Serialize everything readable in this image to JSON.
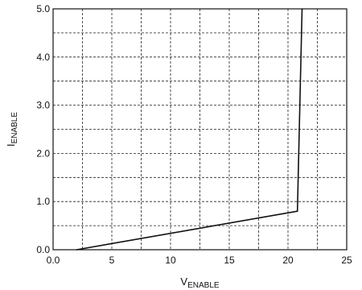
{
  "chart_data": {
    "type": "line",
    "xlabel_main": "V",
    "xlabel_sub": "ENABLE",
    "ylabel_main": "I",
    "ylabel_sub": "ENABLE",
    "xlim": [
      0,
      25
    ],
    "ylim": [
      0,
      5
    ],
    "grid": true,
    "x_ticks": [
      {
        "value": 0,
        "label": "0.0"
      },
      {
        "value": 5,
        "label": "5"
      },
      {
        "value": 10,
        "label": "10"
      },
      {
        "value": 15,
        "label": "15"
      },
      {
        "value": 20,
        "label": "20"
      },
      {
        "value": 25,
        "label": "25"
      }
    ],
    "y_ticks": [
      {
        "value": 0,
        "label": "0.0"
      },
      {
        "value": 1,
        "label": "1.0"
      },
      {
        "value": 2,
        "label": "2.0"
      },
      {
        "value": 3,
        "label": "3.0"
      },
      {
        "value": 4,
        "label": "4.0"
      },
      {
        "value": 5,
        "label": "5.0"
      }
    ],
    "x_minor_step": 2.5,
    "y_minor_step": 0.5,
    "series": [
      {
        "points": [
          {
            "x": 2.0,
            "y": 0.0
          },
          {
            "x": 20.8,
            "y": 0.8
          },
          {
            "x": 21.2,
            "y": 5.0
          }
        ]
      }
    ]
  }
}
